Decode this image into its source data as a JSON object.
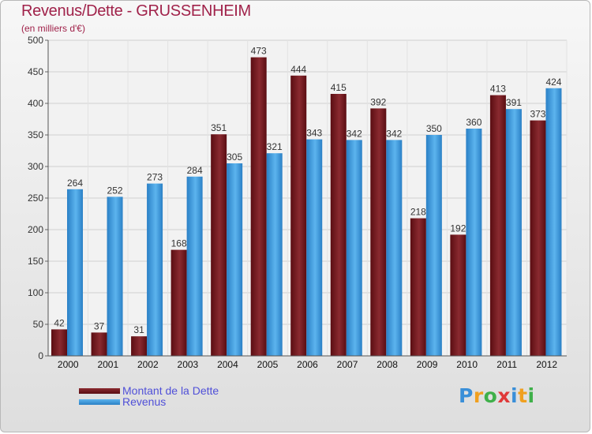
{
  "chart_data": {
    "type": "bar",
    "title": "Revenus/Dette - GRUSSENHEIM",
    "subtitle": "(en milliers d'€)",
    "categories": [
      "2000",
      "2001",
      "2002",
      "2003",
      "2004",
      "2005",
      "2006",
      "2007",
      "2008",
      "2009",
      "2010",
      "2011",
      "2012"
    ],
    "series": [
      {
        "name": "Montant de la Dette",
        "color": "#7a1e22",
        "values": [
          42,
          37,
          31,
          168,
          351,
          473,
          444,
          415,
          392,
          218,
          192,
          413,
          373
        ]
      },
      {
        "name": "Revenus",
        "color": "#3d9de0",
        "values": [
          264,
          252,
          273,
          284,
          305,
          321,
          343,
          342,
          342,
          350,
          360,
          391,
          424
        ]
      }
    ],
    "ylim": [
      0,
      500
    ],
    "yticks": [
      0,
      50,
      100,
      150,
      200,
      250,
      300,
      350,
      400,
      450,
      500
    ],
    "grid": true,
    "legend": "bottom-left"
  },
  "logo": {
    "letters": [
      "P",
      "r",
      "o",
      "x",
      "i",
      "t",
      "i"
    ],
    "colors": [
      "#3a8fd8",
      "#f0a020",
      "#3fb04a",
      "#e03a3a",
      "#3a8fd8",
      "#f0a020",
      "#3fb04a"
    ]
  }
}
